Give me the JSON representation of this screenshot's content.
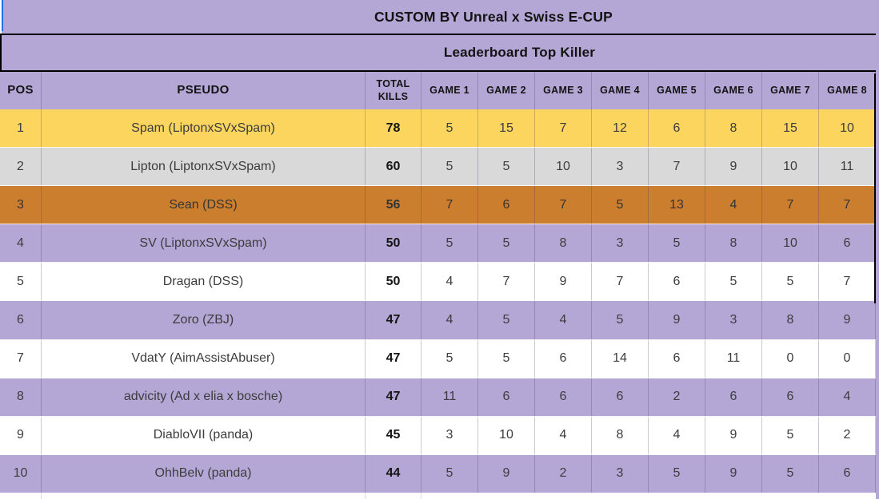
{
  "title": "CUSTOM BY Unreal x Swiss E-CUP",
  "subtitle": "Leaderboard Top Killer",
  "table": {
    "headers": {
      "pos": "POS",
      "pseudo": "PSEUDO",
      "total": "TOTAL KILLS",
      "games": [
        "GAME 1",
        "GAME 2",
        "GAME 3",
        "GAME 4",
        "GAME 5",
        "GAME 6",
        "GAME 7",
        "GAME 8"
      ]
    },
    "rows": [
      {
        "pos": "1",
        "pseudo": "Spam (LiptonxSVxSpam)",
        "total": "78",
        "games": [
          5,
          15,
          7,
          12,
          6,
          8,
          15,
          10
        ],
        "highlight": "gold"
      },
      {
        "pos": "2",
        "pseudo": "Lipton (LiptonxSVxSpam)",
        "total": "60",
        "games": [
          5,
          5,
          10,
          3,
          7,
          9,
          10,
          11
        ],
        "highlight": "silver"
      },
      {
        "pos": "3",
        "pseudo": "Sean (DSS)",
        "total": "56",
        "games": [
          7,
          6,
          7,
          5,
          13,
          4,
          7,
          7
        ],
        "highlight": "bronze"
      },
      {
        "pos": "4",
        "pseudo": "SV (LiptonxSVxSpam)",
        "total": "50",
        "games": [
          5,
          5,
          8,
          3,
          5,
          8,
          10,
          6
        ],
        "highlight": "purple"
      },
      {
        "pos": "5",
        "pseudo": "Dragan (DSS)",
        "total": "50",
        "games": [
          4,
          7,
          9,
          7,
          6,
          5,
          5,
          7
        ],
        "highlight": "white"
      },
      {
        "pos": "6",
        "pseudo": "Zoro (ZBJ)",
        "total": "47",
        "games": [
          4,
          5,
          4,
          5,
          9,
          3,
          8,
          9
        ],
        "highlight": "purple"
      },
      {
        "pos": "7",
        "pseudo": "VdatY (AimAssistAbuser)",
        "total": "47",
        "games": [
          5,
          5,
          6,
          14,
          6,
          11,
          0,
          0
        ],
        "highlight": "white"
      },
      {
        "pos": "8",
        "pseudo": "advicity (Ad x elia x bosche)",
        "total": "47",
        "games": [
          11,
          6,
          6,
          6,
          2,
          6,
          6,
          4
        ],
        "highlight": "purple"
      },
      {
        "pos": "9",
        "pseudo": "DiabloVII (panda)",
        "total": "45",
        "games": [
          3,
          10,
          4,
          8,
          4,
          9,
          5,
          2
        ],
        "highlight": "white"
      },
      {
        "pos": "10",
        "pseudo": "OhhBelv (panda)",
        "total": "44",
        "games": [
          5,
          9,
          2,
          3,
          5,
          9,
          5,
          6
        ],
        "highlight": "purple"
      }
    ]
  },
  "colors": {
    "header_purple": "#b4a7d6",
    "row_gold": "#fcd55f",
    "row_silver": "#d9d9d9",
    "row_bronze": "#cc7e2f",
    "row_purple": "#b4a7d6",
    "row_white": "#ffffff",
    "selection_blue": "#1a73e8",
    "border_black": "#000000"
  }
}
